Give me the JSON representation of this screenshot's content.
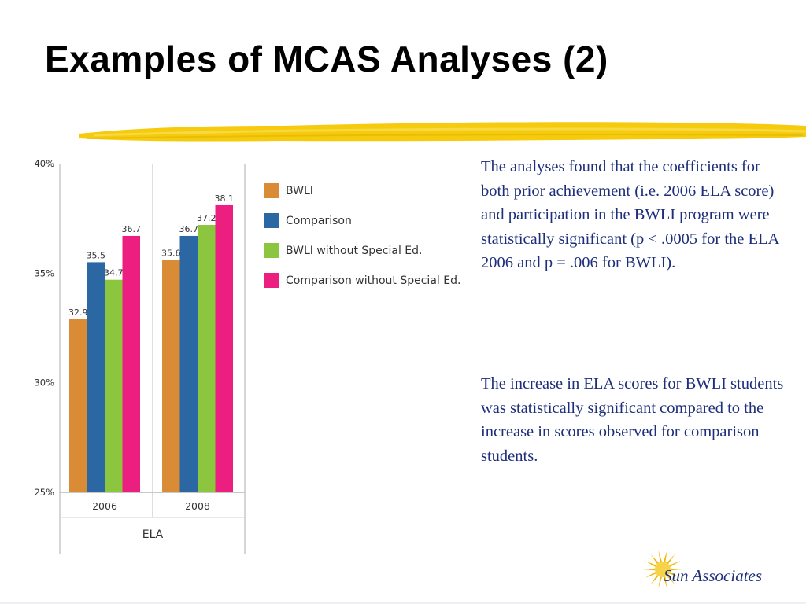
{
  "slide": {
    "title": "Examples of MCAS Analyses (2)",
    "paragraphs": [
      "The analyses found that the coefficients for both prior achievement (i.e. 2006 ELA score) and participation in the BWLI program were statistically significant (p < .0005 for the ELA 2006 and p = .006 for BWLI).",
      "The increase in ELA scores for BWLI students was statistically significant compared to the increase in scores observed for comparison students."
    ],
    "text_color": "#1d2f7a",
    "highlight_color": "#f5c800"
  },
  "logo": {
    "name": "Sun Associates",
    "icon": "sun-icon",
    "color": "#f0b800"
  },
  "chart_data": {
    "type": "bar",
    "categories": [
      "2006",
      "2008"
    ],
    "series": [
      {
        "name": "BWLI",
        "values": [
          32.9,
          35.6
        ],
        "color": "#d98b35"
      },
      {
        "name": "Comparison",
        "values": [
          35.5,
          36.7
        ],
        "color": "#2a67a3"
      },
      {
        "name": "BWLI without Special Ed.",
        "values": [
          34.7,
          37.2
        ],
        "color": "#8cc63f"
      },
      {
        "name": "Comparison without Special Ed.",
        "values": [
          36.7,
          38.1
        ],
        "color": "#ec1f80"
      }
    ],
    "y_ticks": [
      "40%",
      "35%",
      "30%",
      "25%"
    ],
    "ylim": [
      25,
      40
    ],
    "xlabel": "ELA",
    "legend_position": "right",
    "grid": false
  }
}
